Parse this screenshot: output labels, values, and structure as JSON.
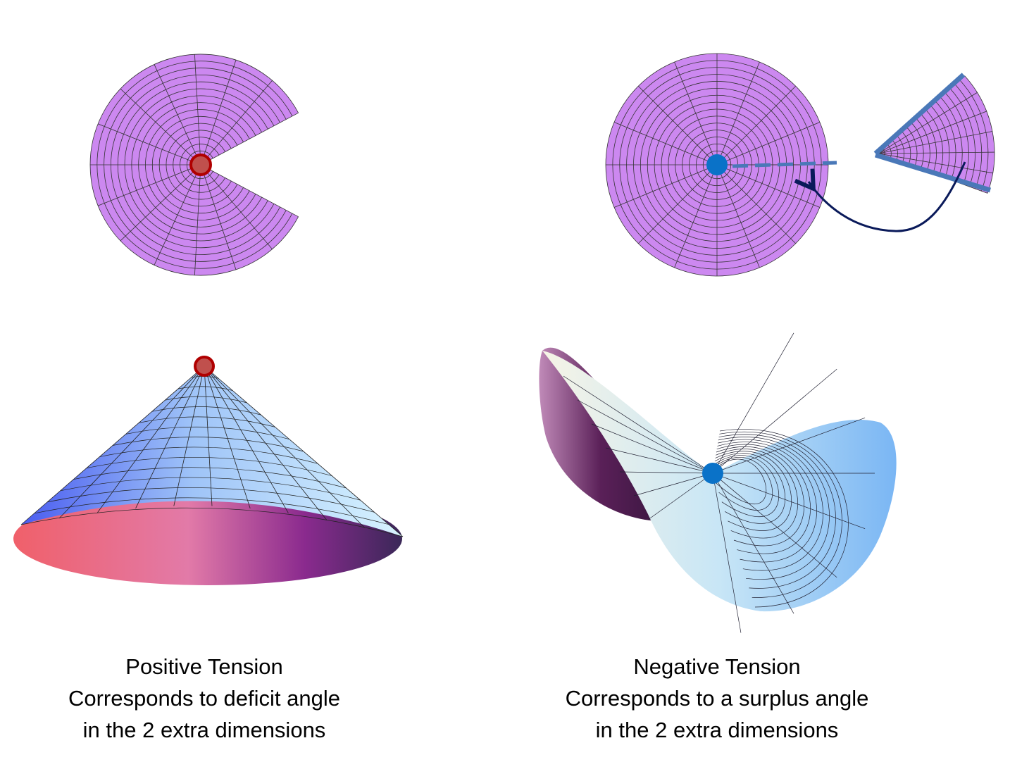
{
  "captions": [
    {
      "title": "Positive Tension",
      "lines": [
        "Corresponds to deficit angle",
        "in the 2 extra dimensions"
      ]
    },
    {
      "title": "Negative Tension",
      "lines": [
        "Corresponds to a surplus angle",
        "in the 2 extra dimensions"
      ]
    }
  ]
}
